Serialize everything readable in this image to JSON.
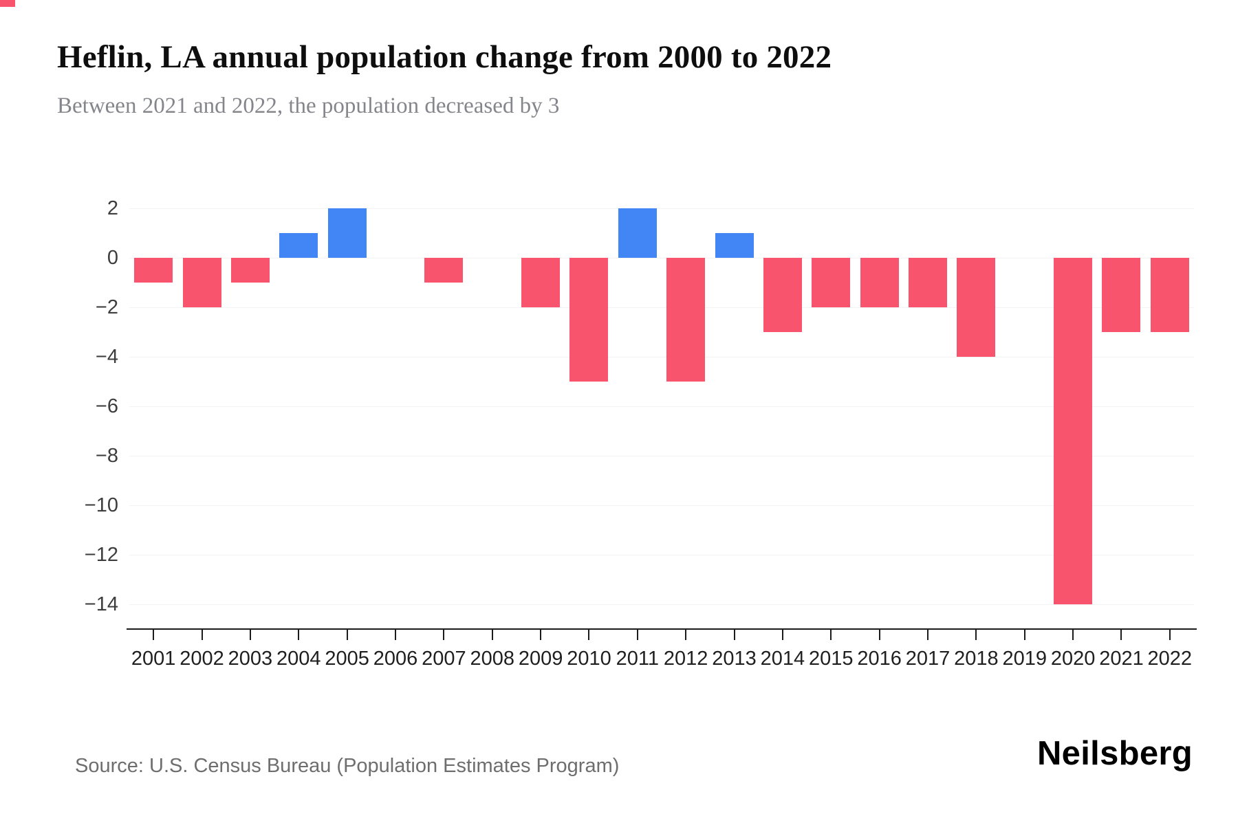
{
  "header": {
    "title": "Heflin, LA annual population change from 2000 to 2022",
    "subtitle": "Between 2021 and 2022, the population decreased by 3"
  },
  "footer": {
    "source": "Source: U.S. Census Bureau (Population Estimates Program)",
    "brand": "Neilsberg"
  },
  "chart_data": {
    "type": "bar",
    "title": "Heflin, LA annual population change from 2000 to 2022",
    "subtitle": "Between 2021 and 2022, the population decreased by 3",
    "xlabel": "",
    "ylabel": "",
    "categories": [
      "2001",
      "2002",
      "2003",
      "2004",
      "2005",
      "2006",
      "2007",
      "2008",
      "2009",
      "2010",
      "2011",
      "2012",
      "2013",
      "2014",
      "2015",
      "2016",
      "2017",
      "2018",
      "2019",
      "2020",
      "2021",
      "2022"
    ],
    "values": [
      -1,
      -2,
      -1,
      1,
      2,
      0,
      -1,
      0,
      -2,
      -5,
      2,
      -5,
      1,
      -3,
      -2,
      -2,
      -2,
      -4,
      0,
      -14,
      -3,
      -3
    ],
    "ylim": [
      -15,
      2
    ],
    "yticks": [
      2,
      0,
      -2,
      -4,
      -6,
      -8,
      -10,
      -12,
      -14
    ],
    "ytick_labels": [
      "2",
      "0",
      "−2",
      "−4",
      "−6",
      "−8",
      "−10",
      "−12",
      "−14"
    ],
    "grid": "horizontal-faint",
    "legend": "none",
    "colors": {
      "positive": "#4285f4",
      "negative": "#f8546e",
      "axis": "#1b1b1b",
      "gridline": "#f3f3f3"
    }
  }
}
